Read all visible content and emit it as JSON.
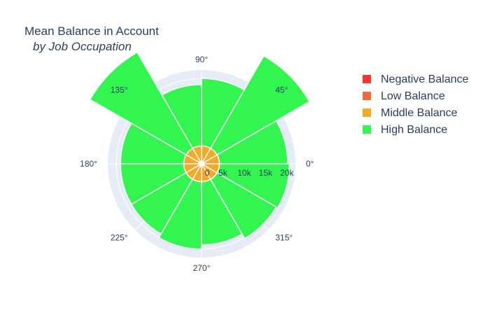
{
  "chart_data": {
    "type": "barpolar",
    "title": "Mean Balance in Account",
    "subtitle": "by Job Occupation",
    "radial_axis": {
      "range": [
        0,
        22000
      ],
      "ticks": [
        0,
        5000,
        10000,
        15000,
        20000
      ],
      "tick_labels": [
        "0",
        "5k",
        "10k",
        "15k",
        "20k"
      ]
    },
    "angular_axis": {
      "ticks_deg": [
        0,
        45,
        90,
        135,
        180,
        225,
        270,
        315
      ],
      "tick_labels": [
        "0°",
        "45°",
        "90°",
        "135°",
        "180°",
        "225°",
        "270°",
        "315°"
      ]
    },
    "bar_width_deg": 30,
    "theta_deg": [
      15,
      45,
      75,
      105,
      135,
      165,
      195,
      225,
      255,
      285,
      315,
      345
    ],
    "series": [
      {
        "name": "Negative Balance",
        "color": "#ff3333",
        "values": [
          200,
          200,
          200,
          200,
          200,
          200,
          200,
          200,
          200,
          200,
          200,
          200
        ]
      },
      {
        "name": "Low Balance",
        "color": "#f5673a",
        "values": [
          400,
          400,
          400,
          400,
          400,
          400,
          400,
          400,
          400,
          400,
          400,
          400
        ]
      },
      {
        "name": "Middle Balance",
        "color": "#f6a829",
        "values": [
          3600,
          3600,
          3600,
          3600,
          3600,
          3600,
          3600,
          3600,
          3600,
          3600,
          3600,
          3600
        ]
      },
      {
        "name": "High Balance",
        "color": "#33f550",
        "values": [
          16000,
          25000,
          15800,
          14400,
          26000,
          14800,
          14800,
          14800,
          15800,
          14800,
          16000,
          16400
        ]
      }
    ],
    "legend_position": "top-right",
    "grid": true
  }
}
